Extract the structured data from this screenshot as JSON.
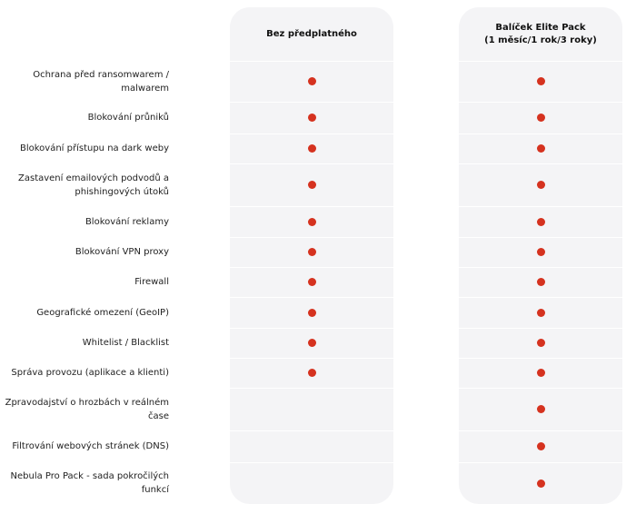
{
  "table": {
    "columns": [
      "Bez předplatného",
      "Balíček Elite Pack\n(1 měsíc/1 rok/3 roky)"
    ],
    "rows": [
      {
        "label": "Ochrana před ransomwarem /\nmalwarem",
        "included": [
          true,
          true
        ]
      },
      {
        "label": "Blokování průniků",
        "included": [
          true,
          true
        ]
      },
      {
        "label": "Blokování přístupu na dark weby",
        "included": [
          true,
          true
        ]
      },
      {
        "label": "Zastavení emailových podvodů a\nphishingových útoků",
        "included": [
          true,
          true
        ]
      },
      {
        "label": "Blokování reklamy",
        "included": [
          true,
          true
        ]
      },
      {
        "label": "Blokování VPN proxy",
        "included": [
          true,
          true
        ]
      },
      {
        "label": "Firewall",
        "included": [
          true,
          true
        ]
      },
      {
        "label": "Geografické omezení (GeoIP)",
        "included": [
          true,
          true
        ]
      },
      {
        "label": "Whitelist / Blacklist",
        "included": [
          true,
          true
        ]
      },
      {
        "label": "Správa provozu (aplikace a klienti)",
        "included": [
          true,
          true
        ]
      },
      {
        "label": "Zpravodajství o hrozbách v reálném\nčase",
        "included": [
          false,
          true
        ]
      },
      {
        "label": "Filtrování webových stránek (DNS)",
        "included": [
          false,
          true
        ]
      },
      {
        "label": "Nebula Pro Pack - sada pokročilých\nfunkcí",
        "included": [
          false,
          true
        ]
      }
    ]
  }
}
